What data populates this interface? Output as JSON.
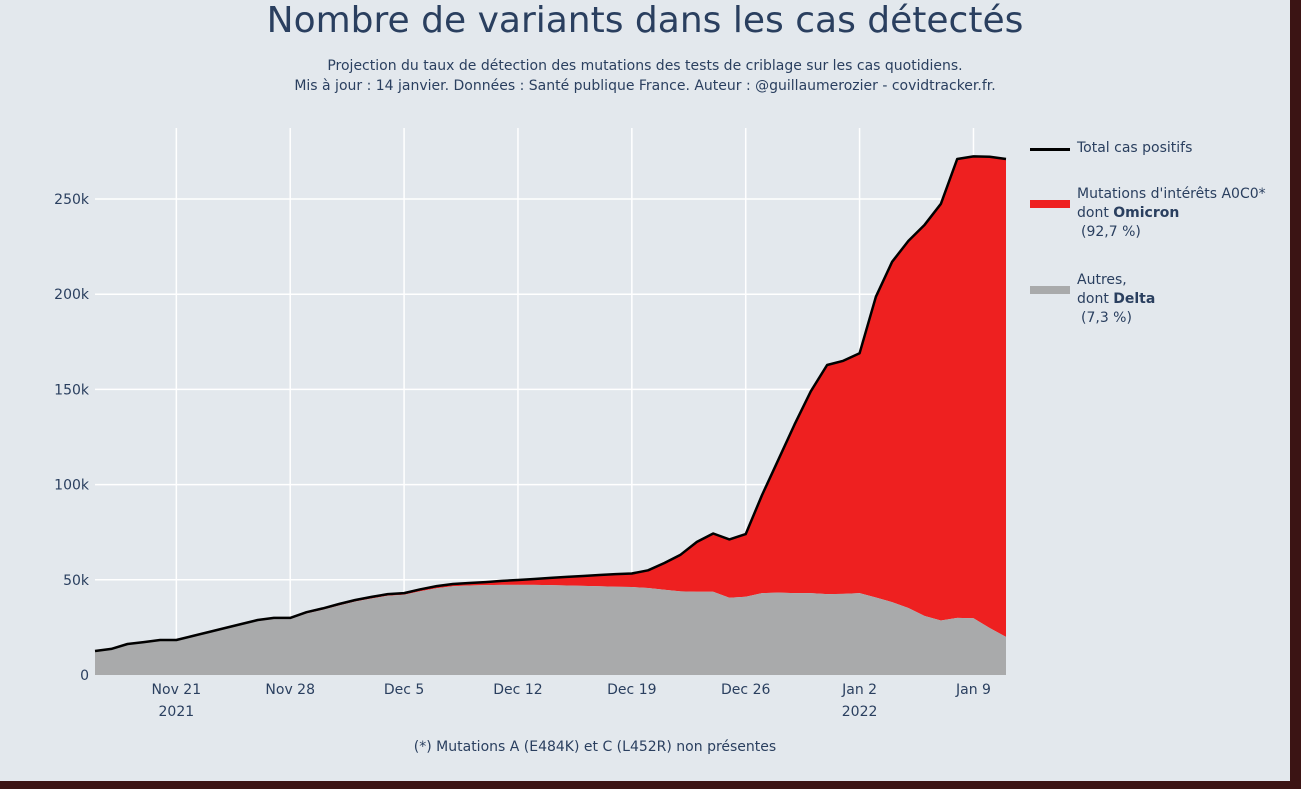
{
  "header": {
    "title": "Nombre de variants dans les cas détectés",
    "subtitle_line1": "Projection du taux de détection des mutations des tests de criblage sur les cas quotidiens.",
    "subtitle_line2": "Mis à jour : 14 janvier. Données : Santé publique France. Auteur : @guillaumerozier - covidtracker.fr."
  },
  "footnote": "(*) Mutations A (E484K) et C (L452R) non présentes",
  "legend": {
    "total": "Total cas positifs",
    "omicron_line1": "Mutations d'intérêts A0C0*",
    "omicron_dont": "dont ",
    "omicron_bold": "Omicron",
    "omicron_pct": "(92,7 %)",
    "autres_line1": "Autres,",
    "autres_dont": "dont ",
    "autres_bold": "Delta",
    "autres_pct": "(7,3 %)"
  },
  "colors": {
    "total": "#000000",
    "omicron": "#ee2020",
    "autres": "#a9aaab",
    "grid": "#ffffff"
  },
  "chart_data": {
    "type": "area",
    "title": "Nombre de variants dans les cas détectés",
    "start_date": "2021-11-16",
    "x_start_label": "Nov 16 2021",
    "ylim": [
      0,
      285000
    ],
    "yticks": [
      0,
      50000,
      100000,
      150000,
      200000,
      250000
    ],
    "ytick_labels": [
      "0",
      "50k",
      "100k",
      "150k",
      "200k",
      "250k"
    ],
    "xticks": [
      {
        "day": 5,
        "label": "Nov 21",
        "year": "2021"
      },
      {
        "day": 12,
        "label": "Nov 28",
        "year": ""
      },
      {
        "day": 19,
        "label": "Dec 5",
        "year": ""
      },
      {
        "day": 26,
        "label": "Dec 12",
        "year": ""
      },
      {
        "day": 33,
        "label": "Dec 19",
        "year": ""
      },
      {
        "day": 40,
        "label": "Dec 26",
        "year": ""
      },
      {
        "day": 47,
        "label": "Jan 2",
        "year": "2022"
      },
      {
        "day": 54,
        "label": "Jan 9",
        "year": ""
      }
    ],
    "grid": true,
    "legend_position": "right",
    "series": [
      {
        "name": "Total cas positifs",
        "values": [
          12600,
          13700,
          16300,
          17300,
          18400,
          18400,
          20500,
          22600,
          24700,
          26800,
          28900,
          30000,
          30000,
          33000,
          35000,
          37300,
          39400,
          41000,
          42500,
          43000,
          45000,
          46700,
          47800,
          48300,
          48800,
          49400,
          49900,
          50400,
          51000,
          51500,
          52000,
          52500,
          53000,
          53300,
          55000,
          58800,
          63200,
          69900,
          74300,
          71200,
          74000,
          94500,
          113000,
          131500,
          149000,
          162800,
          165000,
          169000,
          198700,
          217000,
          228000,
          236500,
          247500,
          271000,
          272400,
          272200,
          271000
        ]
      },
      {
        "name": "Autres, dont Delta",
        "values": [
          12600,
          13700,
          16300,
          17300,
          18400,
          18400,
          20300,
          22300,
          24300,
          26300,
          28300,
          29400,
          29400,
          32300,
          34300,
          36500,
          38600,
          40200,
          41600,
          42100,
          44000,
          45600,
          46600,
          47000,
          47200,
          47300,
          47300,
          47300,
          47200,
          47000,
          46800,
          46600,
          46400,
          46200,
          45700,
          44800,
          43900,
          43700,
          43700,
          40600,
          41100,
          43000,
          43300,
          43000,
          43000,
          42500,
          42600,
          43000,
          40700,
          38300,
          35200,
          31000,
          28600,
          30000,
          29800,
          24700,
          20000
        ]
      }
    ]
  }
}
